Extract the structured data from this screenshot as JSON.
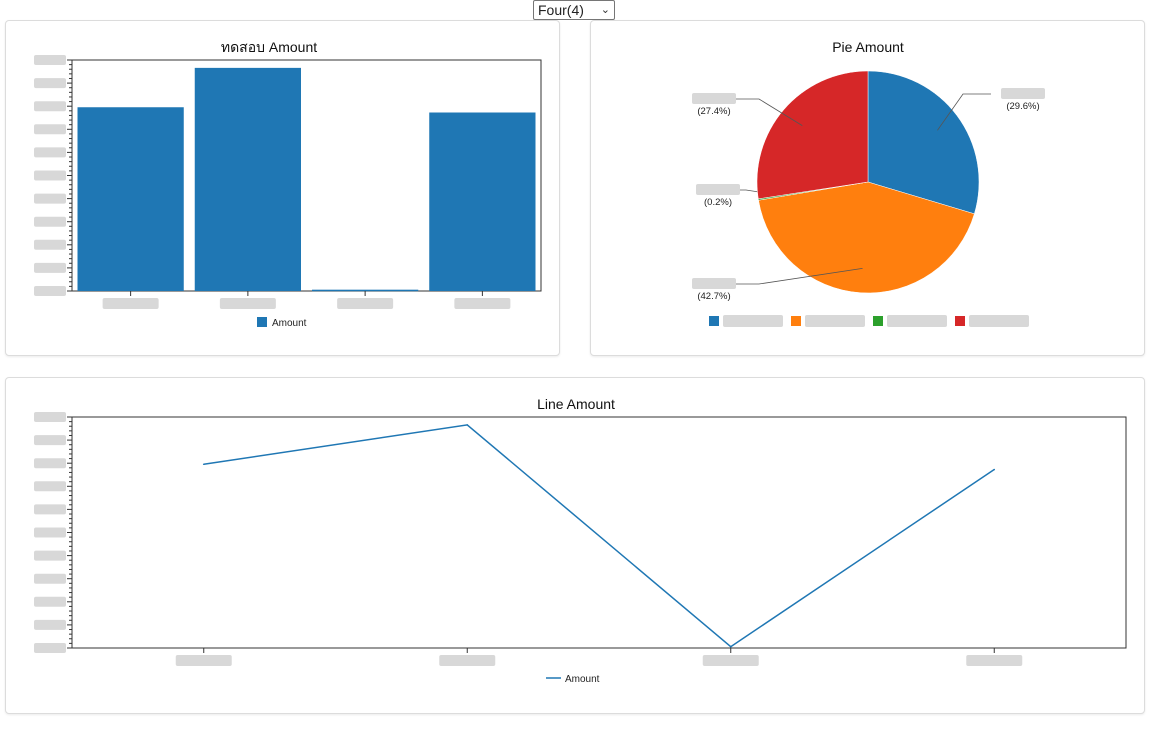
{
  "selector": {
    "value": "Four(4)"
  },
  "colors": {
    "blue": "#1f77b4",
    "orange": "#ff7f0e",
    "green": "#2ca02c",
    "red": "#d62728",
    "axis": "#333333"
  },
  "chart_data": [
    {
      "type": "bar",
      "title": "ทดสอบ Amount",
      "categories": [
        "",
        "",
        "",
        ""
      ],
      "series": [
        {
          "name": "Amount",
          "values": [
            70,
            85,
            0.5,
            68
          ]
        }
      ],
      "ylim": [
        0,
        88
      ],
      "grid": false,
      "legend": "bottom"
    },
    {
      "type": "pie",
      "title": "Pie Amount",
      "slices": [
        {
          "label": "",
          "percent": "(29.6%)",
          "value": 29.6,
          "color": "#1f77b4"
        },
        {
          "label": "",
          "percent": "(42.7%)",
          "value": 42.7,
          "color": "#ff7f0e"
        },
        {
          "label": "",
          "percent": "(0.2%)",
          "value": 0.2,
          "color": "#2ca02c"
        },
        {
          "label": "",
          "percent": "(27.4%)",
          "value": 27.4,
          "color": "#d62728"
        }
      ],
      "legend": "bottom"
    },
    {
      "type": "line",
      "title": "Line Amount",
      "categories": [
        "",
        "",
        "",
        ""
      ],
      "series": [
        {
          "name": "Amount",
          "values": [
            70,
            85,
            0.5,
            68
          ]
        }
      ],
      "ylim": [
        0,
        88
      ],
      "grid": false,
      "legend": "bottom"
    }
  ]
}
